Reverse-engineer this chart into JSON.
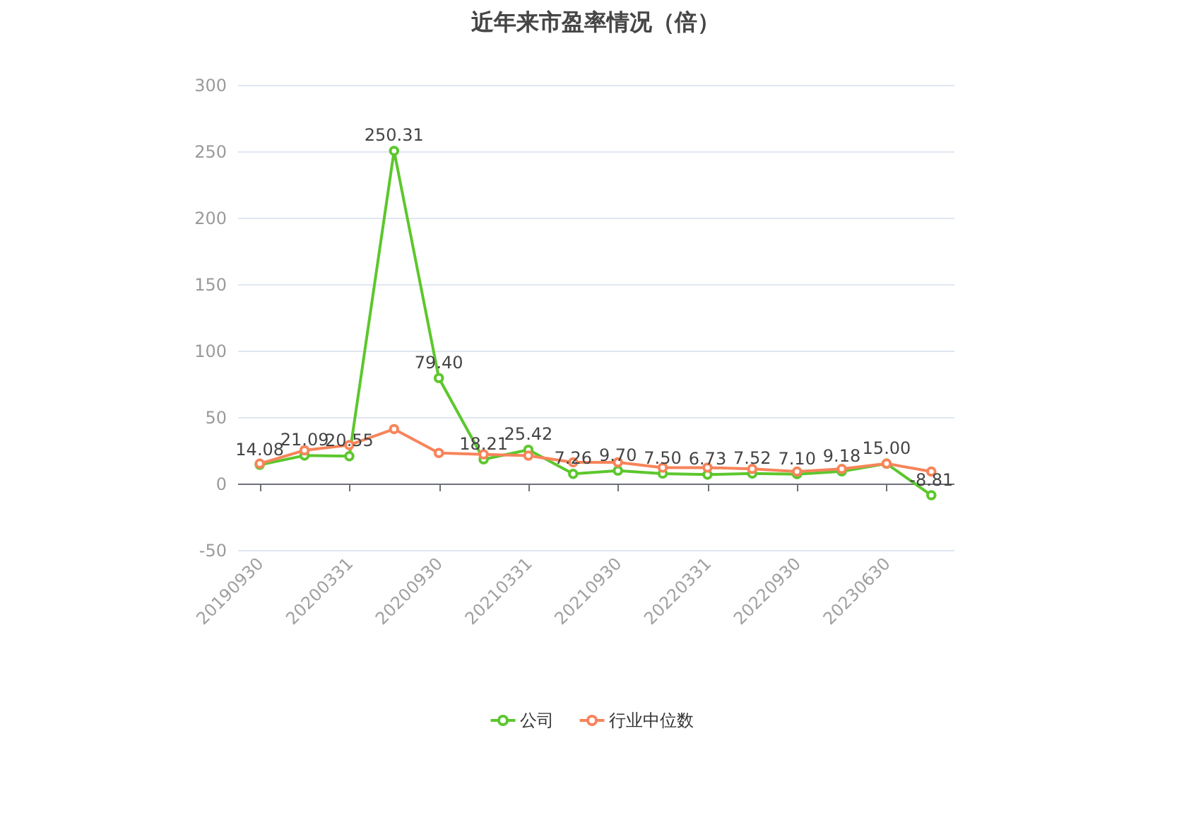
{
  "chart_data": {
    "type": "line",
    "title": "近年来市盈率情况（倍）",
    "categories": [
      "20190930",
      null,
      "20200331",
      null,
      "20200930",
      null,
      "20210331",
      null,
      "20210930",
      null,
      "20220331",
      null,
      "20220930",
      null,
      "20230630",
      null
    ],
    "series": [
      {
        "name": "公司",
        "color": "#5cc72d",
        "values": [
          14.08,
          21.09,
          20.55,
          250.31,
          79.4,
          18.21,
          25.42,
          7.26,
          9.7,
          7.5,
          6.73,
          7.52,
          7.1,
          9.18,
          15.0,
          -8.81
        ],
        "value_labels": [
          "14.08",
          "21.09",
          "20.55",
          "250.31",
          "79.40",
          "18.21",
          "25.42",
          "7.26",
          "9.70",
          "7.50",
          "6.73",
          "7.52",
          "7.10",
          "9.18",
          "15.00",
          "-8.81"
        ]
      },
      {
        "name": "行业中位数",
        "color": "#f7845a",
        "values": [
          15,
          25,
          29,
          41,
          23,
          22,
          21,
          16,
          16,
          12,
          12,
          11,
          9,
          11,
          15,
          9
        ]
      }
    ],
    "ylim": [
      -50,
      300
    ],
    "yticks": [
      -50,
      0,
      50,
      100,
      150,
      200,
      250,
      300
    ],
    "grid": "y",
    "legend": "bottom",
    "marker": "circle",
    "line_style": "solid"
  }
}
